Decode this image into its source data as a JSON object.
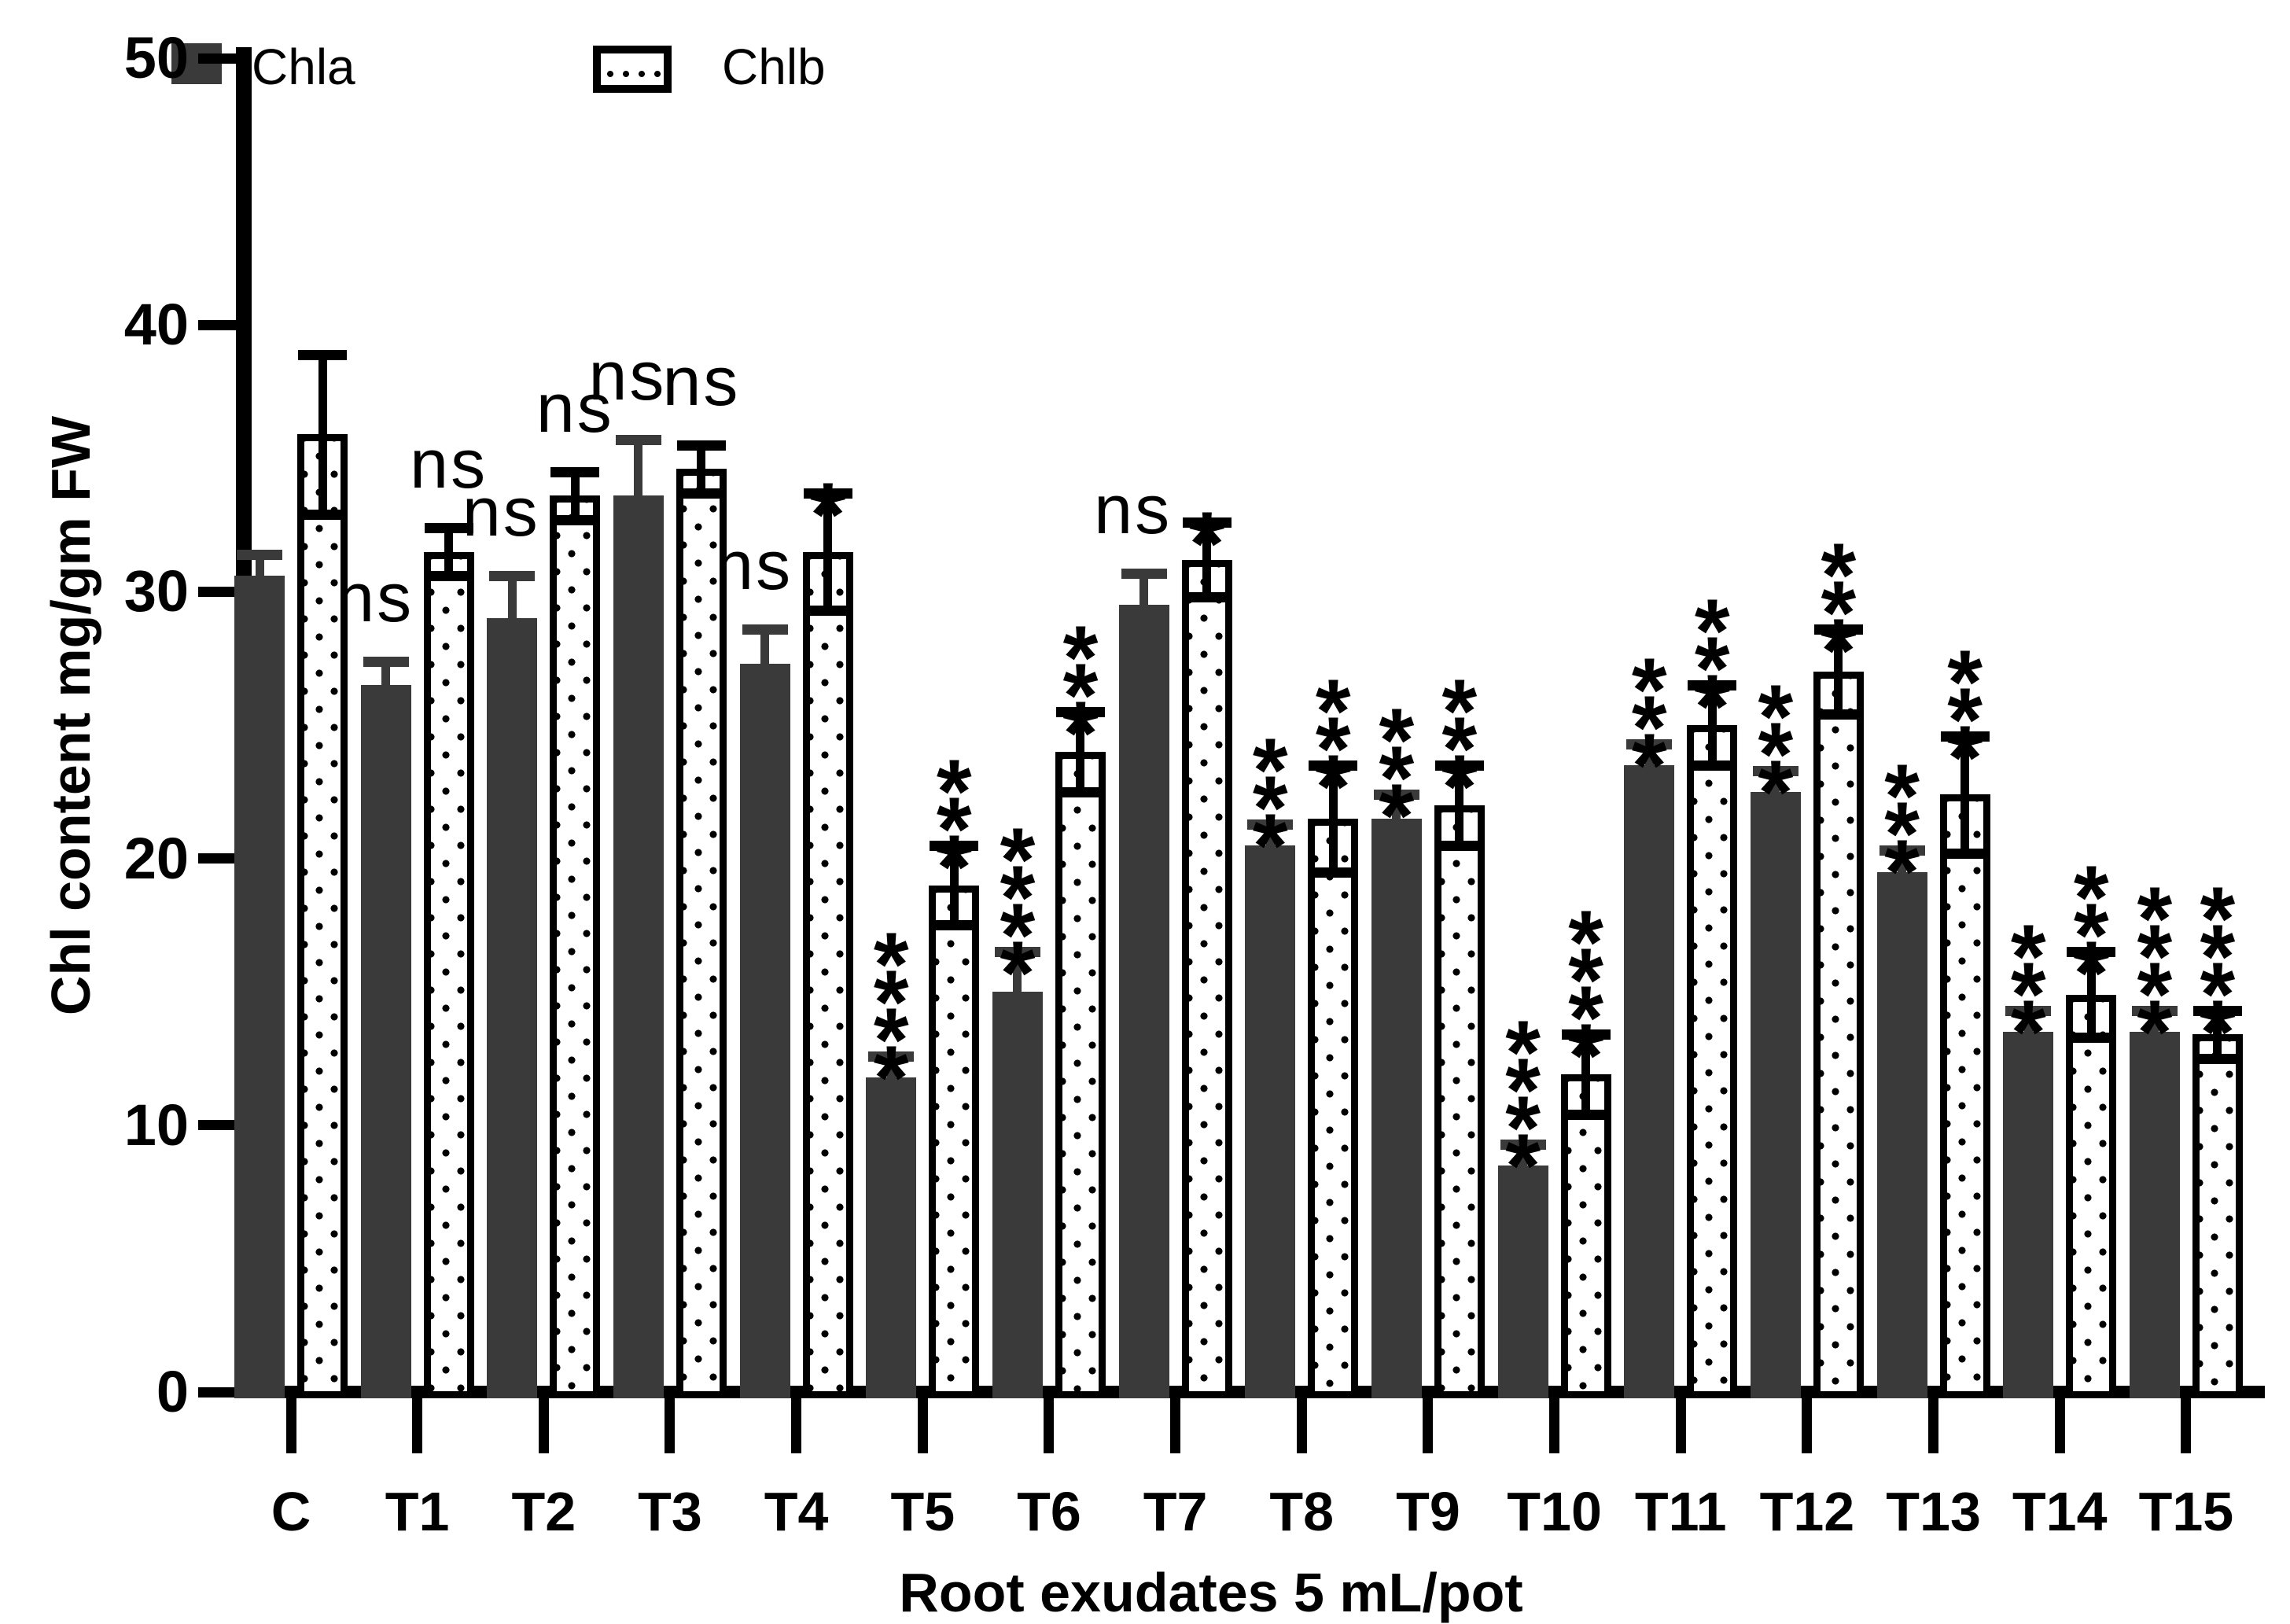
{
  "figure": {
    "background": "#ffffff",
    "bar_color_chla": "#3a3a3a",
    "bar_color_chlb_fill": "#ffffff",
    "bar_border_color": "#000000"
  },
  "legend": {
    "items": [
      {
        "label": "Chla",
        "swatch": "solid-dark"
      },
      {
        "label": "Chlb",
        "swatch": "dotted-outline"
      }
    ]
  },
  "chart_data": {
    "type": "bar",
    "title": "",
    "xlabel": "Root exudates 5 mL/pot",
    "ylabel": "Chl content mg/gm FW",
    "ylim": [
      0,
      50
    ],
    "yticks": [
      0,
      10,
      20,
      30,
      40,
      50
    ],
    "grid": "off",
    "legend_position": "top-left",
    "error_bars": true,
    "categories": [
      "C",
      "T1",
      "T2",
      "T3",
      "T4",
      "T5",
      "T6",
      "T7",
      "T8",
      "T9",
      "T10",
      "T11",
      "T12",
      "T13",
      "T14",
      "T15"
    ],
    "series": [
      {
        "name": "Chla",
        "style": "solid",
        "color": "#3a3a3a",
        "values": [
          30.6,
          26.5,
          29.0,
          33.6,
          27.3,
          11.8,
          15.0,
          29.5,
          20.5,
          21.5,
          8.5,
          23.5,
          22.5,
          19.5,
          13.5,
          13.5
        ],
        "errors": [
          0.8,
          0.9,
          1.6,
          2.1,
          1.3,
          0.8,
          1.5,
          1.2,
          0.8,
          0.9,
          0.8,
          0.8,
          0.8,
          0.8,
          0.8,
          0.8
        ],
        "significance": [
          "",
          "ns",
          "ns",
          "ns",
          "ns",
          "****",
          "****",
          "ns",
          "***",
          "***",
          "****",
          "***",
          "***",
          "***",
          "***",
          "****"
        ]
      },
      {
        "name": "Chlb",
        "style": "dotted-outline",
        "color": "#ffffff",
        "values": [
          35.9,
          31.5,
          33.6,
          34.6,
          31.5,
          19.0,
          24.0,
          31.2,
          21.5,
          22.0,
          11.9,
          25.0,
          27.0,
          22.4,
          14.9,
          13.4
        ],
        "errors": [
          3.0,
          0.9,
          0.9,
          0.9,
          2.2,
          1.5,
          1.5,
          1.4,
          2.0,
          1.5,
          1.5,
          1.5,
          1.6,
          2.2,
          1.6,
          0.9
        ],
        "significance": [
          "",
          "ns",
          "ns",
          "ns",
          "*",
          "***",
          "***",
          "*",
          "***",
          "***",
          "****",
          "***",
          "***",
          "***",
          "***",
          "****"
        ]
      }
    ]
  }
}
